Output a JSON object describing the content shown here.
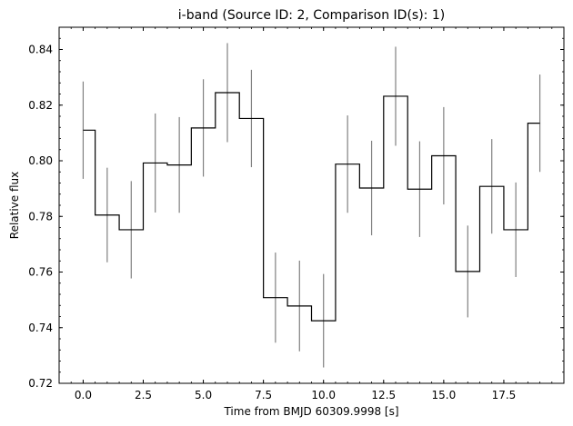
{
  "chart_data": {
    "type": "line",
    "style": "step-mid with error bars",
    "title": "i-band (Source ID: 2, Comparison ID(s): 1)",
    "xlabel": "Time from BMJD 60309.9998 [s]",
    "ylabel": "Relative flux",
    "xlim": [
      -1.0,
      20.0
    ],
    "ylim": [
      0.72,
      0.848
    ],
    "x_ticks": [
      0.0,
      2.5,
      5.0,
      7.5,
      10.0,
      12.5,
      15.0,
      17.5
    ],
    "x_tick_labels": [
      "0.0",
      "2.5",
      "5.0",
      "7.5",
      "10.0",
      "12.5",
      "15.0",
      "17.5"
    ],
    "y_ticks": [
      0.72,
      0.74,
      0.76,
      0.78,
      0.8,
      0.82,
      0.84
    ],
    "y_tick_labels": [
      "0.72",
      "0.74",
      "0.76",
      "0.78",
      "0.80",
      "0.82",
      "0.84"
    ],
    "grid": false,
    "line_color": "#000000",
    "errorbar_color": "#808080",
    "x": [
      0,
      1,
      2,
      3,
      4,
      5,
      6,
      7,
      8,
      9,
      10,
      11,
      12,
      13,
      14,
      15,
      16,
      17,
      18,
      19
    ],
    "y": [
      0.811,
      0.7805,
      0.7752,
      0.7992,
      0.7985,
      0.8118,
      0.8245,
      0.8152,
      0.7508,
      0.7478,
      0.7425,
      0.7988,
      0.7902,
      0.8232,
      0.7898,
      0.8018,
      0.7602,
      0.7908,
      0.7752,
      0.8135
    ],
    "yerr": [
      0.0175,
      0.017,
      0.0175,
      0.0178,
      0.0172,
      0.0175,
      0.0178,
      0.0175,
      0.0162,
      0.0163,
      0.0168,
      0.0175,
      0.017,
      0.0178,
      0.0172,
      0.0175,
      0.0165,
      0.017,
      0.017,
      0.0175
    ]
  }
}
